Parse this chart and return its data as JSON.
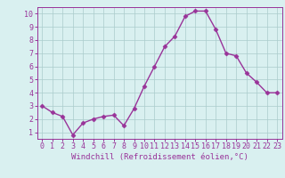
{
  "x": [
    0,
    1,
    2,
    3,
    4,
    5,
    6,
    7,
    8,
    9,
    10,
    11,
    12,
    13,
    14,
    15,
    16,
    17,
    18,
    19,
    20,
    21,
    22,
    23
  ],
  "y": [
    3.0,
    2.5,
    2.2,
    0.8,
    1.7,
    2.0,
    2.2,
    2.3,
    1.5,
    2.8,
    4.5,
    6.0,
    7.5,
    8.3,
    9.8,
    10.2,
    10.2,
    8.8,
    7.0,
    6.8,
    5.5,
    4.8,
    4.0,
    4.0
  ],
  "line_color": "#993399",
  "marker": "D",
  "marker_size": 2.5,
  "line_width": 1.0,
  "bg_color": "#d9f0f0",
  "grid_color": "#aacccc",
  "xlabel": "Windchill (Refroidissement éolien,°C)",
  "xlabel_color": "#993399",
  "xlabel_fontsize": 6.5,
  "tick_color": "#993399",
  "tick_fontsize": 6.0,
  "xlim": [
    -0.5,
    23.5
  ],
  "ylim": [
    0.5,
    10.5
  ],
  "yticks": [
    1,
    2,
    3,
    4,
    5,
    6,
    7,
    8,
    9,
    10
  ],
  "xticks": [
    0,
    1,
    2,
    3,
    4,
    5,
    6,
    7,
    8,
    9,
    10,
    11,
    12,
    13,
    14,
    15,
    16,
    17,
    18,
    19,
    20,
    21,
    22,
    23
  ],
  "spine_color": "#993399"
}
